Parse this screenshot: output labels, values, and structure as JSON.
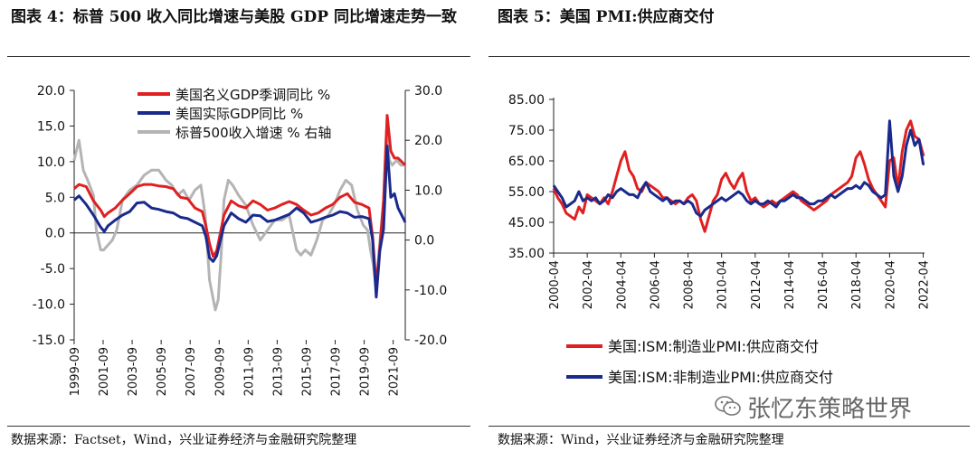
{
  "chart4": {
    "title": "图表 4：标普 500 收入同比增速与美股 GDP 同比增速走势一致",
    "source": "数据来源：Factset，Wind，兴业证券经济与金融研究院整理"
  },
  "chart5": {
    "title": "图表 5：美国 PMI:供应商交付",
    "source": "数据来源：Wind，兴业证券经济与金融研究院整理"
  },
  "watermark": "张忆东策略世界",
  "chart_data": [
    {
      "type": "line",
      "title": "标普 500 收入同比增速与美股 GDP 同比增速走势一致",
      "xlabel": "",
      "ylabel": "",
      "ylim": [
        -15,
        20
      ],
      "yticks": [
        "20.0",
        "15.0",
        "10.0",
        "5.0",
        "0.0",
        "-5.0",
        "-10.0",
        "-15.0"
      ],
      "ylim_right": [
        -20,
        30
      ],
      "yticks_right": [
        "30.0",
        "20.0",
        "10.0",
        "0.0",
        "-10.0",
        "-20.0"
      ],
      "xlim": [
        1999.67,
        2022.5
      ],
      "xticks": [
        "1999-09",
        "2001-09",
        "2003-09",
        "2005-09",
        "2007-09",
        "2009-09",
        "2011-09",
        "2013-09",
        "2015-09",
        "2017-09",
        "2019-09",
        "2021-09"
      ],
      "legend_position": "top",
      "series": [
        {
          "name": "美国名义GDP季调同比 %",
          "color": "#e02020",
          "axis": "left",
          "x": [
            1999.67,
            2000.0,
            2000.5,
            2001.0,
            2001.5,
            2001.75,
            2002.0,
            2002.5,
            2003.0,
            2003.5,
            2004.0,
            2004.5,
            2005.0,
            2005.5,
            2006.0,
            2006.5,
            2007.0,
            2007.5,
            2008.0,
            2008.5,
            2008.75,
            2009.0,
            2009.25,
            2009.5,
            2010.0,
            2010.5,
            2011.0,
            2011.5,
            2012.0,
            2012.5,
            2013.0,
            2013.5,
            2014.0,
            2014.5,
            2015.0,
            2015.5,
            2016.0,
            2016.5,
            2017.0,
            2017.5,
            2018.0,
            2018.5,
            2019.0,
            2019.5,
            2020.0,
            2020.25,
            2020.5,
            2020.75,
            2021.0,
            2021.25,
            2021.5,
            2021.75,
            2022.0,
            2022.5
          ],
          "y": [
            6.2,
            6.8,
            6.5,
            4.5,
            3.2,
            2.3,
            2.8,
            3.5,
            4.6,
            5.5,
            6.5,
            6.8,
            6.8,
            6.6,
            6.5,
            6.2,
            5.0,
            4.8,
            3.5,
            3.0,
            1.0,
            -1.5,
            -3.3,
            -2.5,
            2.5,
            4.5,
            3.8,
            3.5,
            4.5,
            4.0,
            3.2,
            3.5,
            4.0,
            4.4,
            4.0,
            3.2,
            2.5,
            2.8,
            3.5,
            4.0,
            5.0,
            5.5,
            4.3,
            4.0,
            3.5,
            -0.5,
            -7.5,
            -2.0,
            4.5,
            16.5,
            11.5,
            10.5,
            10.5,
            9.5
          ]
        },
        {
          "name": "美国实际GDP同比 %",
          "color": "#1a2a8c",
          "axis": "left",
          "x": [
            1999.67,
            2000.0,
            2000.5,
            2001.0,
            2001.5,
            2001.75,
            2002.0,
            2002.5,
            2003.0,
            2003.5,
            2004.0,
            2004.5,
            2005.0,
            2005.5,
            2006.0,
            2006.5,
            2007.0,
            2007.5,
            2008.0,
            2008.5,
            2008.75,
            2009.0,
            2009.25,
            2009.5,
            2010.0,
            2010.5,
            2011.0,
            2011.5,
            2012.0,
            2012.5,
            2013.0,
            2013.5,
            2014.0,
            2014.5,
            2015.0,
            2015.5,
            2016.0,
            2016.5,
            2017.0,
            2017.5,
            2018.0,
            2018.5,
            2019.0,
            2019.5,
            2020.0,
            2020.25,
            2020.5,
            2020.75,
            2021.0,
            2021.25,
            2021.5,
            2021.75,
            2022.0,
            2022.5
          ],
          "y": [
            4.6,
            5.2,
            4.0,
            2.5,
            0.8,
            0.2,
            1.0,
            1.8,
            2.5,
            3.0,
            4.2,
            4.3,
            3.5,
            3.3,
            3.0,
            2.8,
            2.2,
            2.0,
            1.5,
            1.0,
            -0.5,
            -3.5,
            -4.0,
            -3.2,
            1.0,
            2.8,
            2.0,
            1.5,
            2.5,
            2.4,
            1.6,
            1.8,
            2.2,
            2.6,
            3.5,
            2.8,
            1.5,
            1.8,
            2.2,
            2.5,
            3.0,
            2.8,
            2.2,
            2.3,
            2.0,
            -1.0,
            -9.0,
            -2.5,
            0.5,
            12.2,
            5.0,
            5.5,
            3.5,
            1.5
          ]
        },
        {
          "name": "标普500收入增速 % 右轴",
          "color": "#b4b4b4",
          "axis": "right",
          "x": [
            1999.67,
            1999.83,
            2000.0,
            2000.3,
            2000.6,
            2001.0,
            2001.2,
            2001.5,
            2001.7,
            2002.0,
            2002.3,
            2002.6,
            2003.0,
            2003.5,
            2004.0,
            2004.5,
            2005.0,
            2005.5,
            2006.0,
            2006.4,
            2006.8,
            2007.2,
            2007.6,
            2008.0,
            2008.4,
            2008.7,
            2009.0,
            2009.2,
            2009.4,
            2009.6,
            2009.8,
            2010.0,
            2010.3,
            2010.6,
            2011.0,
            2011.5,
            2012.0,
            2012.5,
            2013.0,
            2013.5,
            2014.0,
            2014.5,
            2015.0,
            2015.3,
            2015.6,
            2016.0,
            2016.4,
            2016.8,
            2017.2,
            2017.6,
            2018.0,
            2018.4,
            2018.8,
            2019.2,
            2019.6,
            2019.9,
            2020.1,
            2020.3,
            2020.5,
            2020.7,
            2021.0,
            2021.2,
            2021.4,
            2021.6,
            2021.9,
            2022.2,
            2022.5
          ],
          "y": [
            16,
            18,
            20,
            14,
            12,
            9,
            2,
            -2,
            -2,
            -1,
            0,
            2,
            8,
            10,
            11,
            13,
            14,
            14,
            12,
            11,
            9,
            10,
            8,
            10,
            11,
            5,
            -8,
            -11,
            -14,
            -12,
            -3,
            8,
            12,
            11,
            9,
            7,
            3,
            0,
            2,
            4,
            4,
            5,
            -2,
            -3,
            -2,
            -3,
            0,
            4,
            5,
            7,
            10,
            12,
            11,
            6,
            3,
            2,
            -2,
            -5,
            -10,
            -2,
            8,
            22,
            16,
            15,
            16,
            15,
            15
          ]
        }
      ]
    },
    {
      "type": "line",
      "title": "美国 PMI:供应商交付",
      "xlabel": "",
      "ylabel": "",
      "ylim": [
        35,
        85
      ],
      "yticks": [
        "85.00",
        "75.00",
        "65.00",
        "55.00",
        "45.00",
        "35.00"
      ],
      "xlim": [
        2000.25,
        2022.33
      ],
      "xticks": [
        "2000-04",
        "2002-04",
        "2004-04",
        "2006-04",
        "2008-04",
        "2010-04",
        "2012-04",
        "2014-04",
        "2016-04",
        "2018-04",
        "2020-04",
        "2022-04"
      ],
      "legend_position": "bottom",
      "series": [
        {
          "name": "美国:ISM:制造业PMI:供应商交付",
          "color": "#e02020",
          "x": [
            2000.25,
            2000.5,
            2000.75,
            2001.0,
            2001.25,
            2001.5,
            2001.75,
            2002.0,
            2002.25,
            2002.5,
            2002.75,
            2003.0,
            2003.25,
            2003.5,
            2003.75,
            2004.0,
            2004.25,
            2004.5,
            2004.75,
            2005.0,
            2005.25,
            2005.5,
            2005.75,
            2006.0,
            2006.25,
            2006.5,
            2006.75,
            2007.0,
            2007.25,
            2007.5,
            2007.75,
            2008.0,
            2008.25,
            2008.5,
            2008.75,
            2009.0,
            2009.25,
            2009.5,
            2009.75,
            2010.0,
            2010.25,
            2010.5,
            2010.75,
            2011.0,
            2011.25,
            2011.5,
            2011.75,
            2012.0,
            2012.25,
            2012.5,
            2012.75,
            2013.0,
            2013.25,
            2013.5,
            2013.75,
            2014.0,
            2014.25,
            2014.5,
            2014.75,
            2015.0,
            2015.25,
            2015.5,
            2015.75,
            2016.0,
            2016.25,
            2016.5,
            2016.75,
            2017.0,
            2017.25,
            2017.5,
            2017.75,
            2018.0,
            2018.25,
            2018.5,
            2018.75,
            2019.0,
            2019.25,
            2019.5,
            2019.75,
            2020.0,
            2020.25,
            2020.5,
            2020.75,
            2021.0,
            2021.25,
            2021.5,
            2021.75,
            2022.0,
            2022.25,
            2022.33
          ],
          "y": [
            56,
            53,
            51,
            48,
            47,
            46,
            50,
            48,
            54,
            53,
            52,
            51,
            53,
            51,
            55,
            60,
            65,
            68,
            62,
            60,
            56,
            55,
            58,
            57,
            56,
            55,
            53,
            53,
            52,
            51,
            52,
            51,
            53,
            54,
            52,
            46,
            42,
            47,
            52,
            54,
            59,
            61,
            58,
            56,
            59,
            61,
            55,
            52,
            53,
            51,
            50,
            51,
            52,
            51,
            52,
            53,
            54,
            55,
            54,
            52,
            51,
            50,
            49,
            50,
            51,
            52,
            54,
            55,
            56,
            57,
            58,
            60,
            66,
            68,
            64,
            59,
            56,
            54,
            52,
            50,
            65,
            66,
            56,
            68,
            75,
            78,
            73,
            72,
            67,
            67
          ]
        },
        {
          "name": "美国:ISM:非制造业PMI:供应商交付",
          "color": "#1a2a8c",
          "x": [
            2000.25,
            2000.5,
            2000.75,
            2001.0,
            2001.25,
            2001.5,
            2001.75,
            2002.0,
            2002.25,
            2002.5,
            2002.75,
            2003.0,
            2003.25,
            2003.5,
            2003.75,
            2004.0,
            2004.25,
            2004.5,
            2004.75,
            2005.0,
            2005.25,
            2005.5,
            2005.75,
            2006.0,
            2006.25,
            2006.5,
            2006.75,
            2007.0,
            2007.25,
            2007.5,
            2007.75,
            2008.0,
            2008.25,
            2008.5,
            2008.75,
            2009.0,
            2009.25,
            2009.5,
            2009.75,
            2010.0,
            2010.25,
            2010.5,
            2010.75,
            2011.0,
            2011.25,
            2011.5,
            2011.75,
            2012.0,
            2012.25,
            2012.5,
            2012.75,
            2013.0,
            2013.25,
            2013.5,
            2013.75,
            2014.0,
            2014.25,
            2014.5,
            2014.75,
            2015.0,
            2015.25,
            2015.5,
            2015.75,
            2016.0,
            2016.25,
            2016.5,
            2016.75,
            2017.0,
            2017.25,
            2017.5,
            2017.75,
            2018.0,
            2018.25,
            2018.5,
            2018.75,
            2019.0,
            2019.25,
            2019.5,
            2019.75,
            2020.0,
            2020.25,
            2020.5,
            2020.75,
            2021.0,
            2021.25,
            2021.5,
            2021.75,
            2022.0,
            2022.25,
            2022.33
          ],
          "y": [
            57,
            55,
            53,
            50,
            51,
            52,
            55,
            52,
            53,
            52,
            53,
            51,
            52,
            54,
            53,
            55,
            56,
            55,
            54,
            54,
            53,
            56,
            58,
            55,
            54,
            53,
            52,
            53,
            51,
            52,
            52,
            51,
            52,
            51,
            48,
            47,
            49,
            50,
            51,
            52,
            53,
            52,
            53,
            54,
            55,
            54,
            52,
            51,
            52,
            51,
            51,
            52,
            51,
            50,
            52,
            52,
            53,
            54,
            53,
            53,
            52,
            51,
            51,
            52,
            52,
            53,
            54,
            53,
            54,
            55,
            56,
            56,
            57,
            56,
            58,
            57,
            55,
            54,
            53,
            54,
            78,
            60,
            55,
            60,
            70,
            75,
            70,
            72,
            64,
            64
          ]
        }
      ]
    }
  ]
}
